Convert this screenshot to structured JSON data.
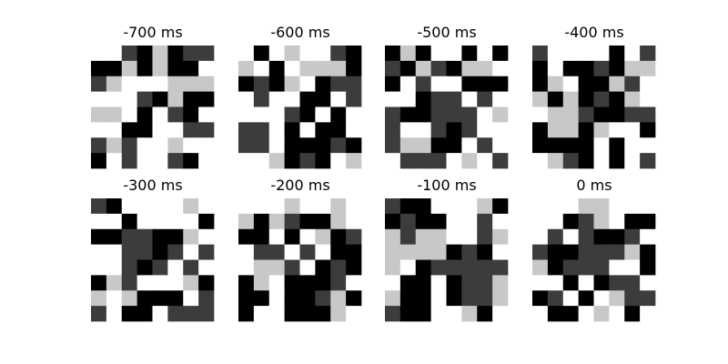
{
  "chart_data": {
    "type": "heatmap",
    "levels_legend": "0 = white, 1 = light gray, 2 = dark gray, 3 = black",
    "colors": [
      "#ffffff",
      "#c8c8c8",
      "#3c3c3c",
      "#000000"
    ],
    "panels": [
      {
        "title": "-700 ms",
        "grid": [
          [
            0,
            0,
            2,
            3,
            1,
            3,
            2,
            2
          ],
          [
            3,
            3,
            1,
            3,
            1,
            3,
            3,
            0
          ],
          [
            2,
            1,
            0,
            0,
            0,
            1,
            1,
            1
          ],
          [
            0,
            0,
            0,
            2,
            3,
            1,
            3,
            3
          ],
          [
            1,
            1,
            0,
            3,
            0,
            2,
            3,
            0
          ],
          [
            0,
            0,
            3,
            3,
            0,
            0,
            2,
            2
          ],
          [
            2,
            1,
            2,
            0,
            0,
            1,
            0,
            0
          ],
          [
            3,
            0,
            2,
            0,
            0,
            2,
            3,
            0
          ]
        ]
      },
      {
        "title": "-600 ms",
        "grid": [
          [
            0,
            3,
            0,
            1,
            0,
            0,
            2,
            3
          ],
          [
            1,
            0,
            3,
            0,
            1,
            1,
            1,
            3
          ],
          [
            3,
            2,
            3,
            1,
            0,
            3,
            2,
            2
          ],
          [
            0,
            2,
            0,
            0,
            3,
            3,
            0,
            2
          ],
          [
            0,
            0,
            0,
            2,
            3,
            0,
            3,
            0
          ],
          [
            2,
            2,
            0,
            3,
            0,
            3,
            3,
            0
          ],
          [
            2,
            2,
            0,
            3,
            3,
            3,
            2,
            3
          ],
          [
            0,
            0,
            1,
            3,
            2,
            3,
            0,
            1
          ]
        ]
      },
      {
        "title": "-500 ms",
        "grid": [
          [
            3,
            1,
            3,
            0,
            0,
            3,
            0,
            3
          ],
          [
            2,
            3,
            1,
            2,
            3,
            1,
            1,
            0
          ],
          [
            3,
            0,
            2,
            0,
            0,
            3,
            3,
            3
          ],
          [
            0,
            0,
            3,
            2,
            2,
            0,
            2,
            0
          ],
          [
            2,
            3,
            3,
            2,
            2,
            2,
            0,
            1
          ],
          [
            2,
            0,
            0,
            2,
            3,
            2,
            0,
            0
          ],
          [
            2,
            1,
            1,
            3,
            3,
            0,
            2,
            0
          ],
          [
            0,
            2,
            2,
            2,
            0,
            1,
            0,
            2
          ]
        ]
      },
      {
        "title": "-400 ms",
        "grid": [
          [
            2,
            0,
            0,
            0,
            0,
            3,
            0,
            2
          ],
          [
            3,
            0,
            3,
            3,
            2,
            3,
            1,
            1
          ],
          [
            3,
            1,
            0,
            3,
            3,
            1,
            2,
            0
          ],
          [
            1,
            3,
            1,
            3,
            2,
            3,
            1,
            0
          ],
          [
            0,
            1,
            1,
            2,
            3,
            3,
            2,
            2
          ],
          [
            3,
            1,
            1,
            3,
            1,
            0,
            0,
            3
          ],
          [
            3,
            3,
            3,
            3,
            0,
            3,
            0,
            0
          ],
          [
            0,
            1,
            2,
            3,
            0,
            3,
            0,
            2
          ]
        ]
      },
      {
        "title": "-300 ms",
        "grid": [
          [
            2,
            3,
            0,
            0,
            0,
            0,
            1,
            0
          ],
          [
            0,
            0,
            3,
            0,
            0,
            0,
            0,
            3
          ],
          [
            3,
            3,
            2,
            2,
            3,
            3,
            1,
            0
          ],
          [
            0,
            0,
            2,
            2,
            3,
            2,
            0,
            2
          ],
          [
            0,
            0,
            2,
            3,
            2,
            0,
            2,
            0
          ],
          [
            3,
            1,
            2,
            0,
            0,
            0,
            1,
            3
          ],
          [
            1,
            0,
            1,
            3,
            3,
            3,
            0,
            2
          ],
          [
            2,
            0,
            3,
            3,
            0,
            2,
            2,
            2
          ]
        ]
      },
      {
        "title": "-200 ms",
        "grid": [
          [
            0,
            0,
            0,
            1,
            0,
            0,
            1,
            0
          ],
          [
            1,
            3,
            1,
            2,
            3,
            3,
            1,
            0
          ],
          [
            3,
            3,
            0,
            3,
            0,
            1,
            3,
            2
          ],
          [
            0,
            2,
            2,
            0,
            2,
            0,
            3,
            3
          ],
          [
            0,
            1,
            1,
            2,
            0,
            3,
            2,
            3
          ],
          [
            3,
            1,
            0,
            3,
            3,
            3,
            2,
            0
          ],
          [
            3,
            3,
            0,
            3,
            3,
            2,
            1,
            3
          ],
          [
            3,
            0,
            0,
            3,
            3,
            3,
            1,
            0
          ]
        ]
      },
      {
        "title": "-100 ms",
        "grid": [
          [
            2,
            3,
            3,
            0,
            0,
            0,
            1,
            3
          ],
          [
            3,
            2,
            3,
            3,
            0,
            0,
            2,
            0
          ],
          [
            1,
            2,
            1,
            1,
            0,
            0,
            2,
            1
          ],
          [
            1,
            1,
            1,
            1,
            3,
            2,
            3,
            0
          ],
          [
            1,
            0,
            3,
            2,
            2,
            2,
            2,
            2
          ],
          [
            0,
            3,
            3,
            0,
            3,
            2,
            2,
            1
          ],
          [
            1,
            3,
            3,
            0,
            3,
            2,
            2,
            1
          ],
          [
            2,
            3,
            3,
            0,
            0,
            1,
            3,
            0
          ]
        ]
      },
      {
        "title": "0 ms",
        "grid": [
          [
            0,
            0,
            0,
            1,
            1,
            0,
            0,
            0
          ],
          [
            0,
            0,
            3,
            2,
            1,
            0,
            3,
            3
          ],
          [
            0,
            2,
            0,
            2,
            3,
            3,
            2,
            0
          ],
          [
            2,
            3,
            3,
            2,
            2,
            2,
            1,
            3
          ],
          [
            1,
            3,
            2,
            2,
            2,
            0,
            0,
            3
          ],
          [
            0,
            0,
            3,
            0,
            3,
            2,
            2,
            0
          ],
          [
            3,
            2,
            0,
            3,
            0,
            1,
            2,
            2
          ],
          [
            0,
            3,
            3,
            0,
            1,
            0,
            3,
            0
          ]
        ]
      }
    ]
  }
}
